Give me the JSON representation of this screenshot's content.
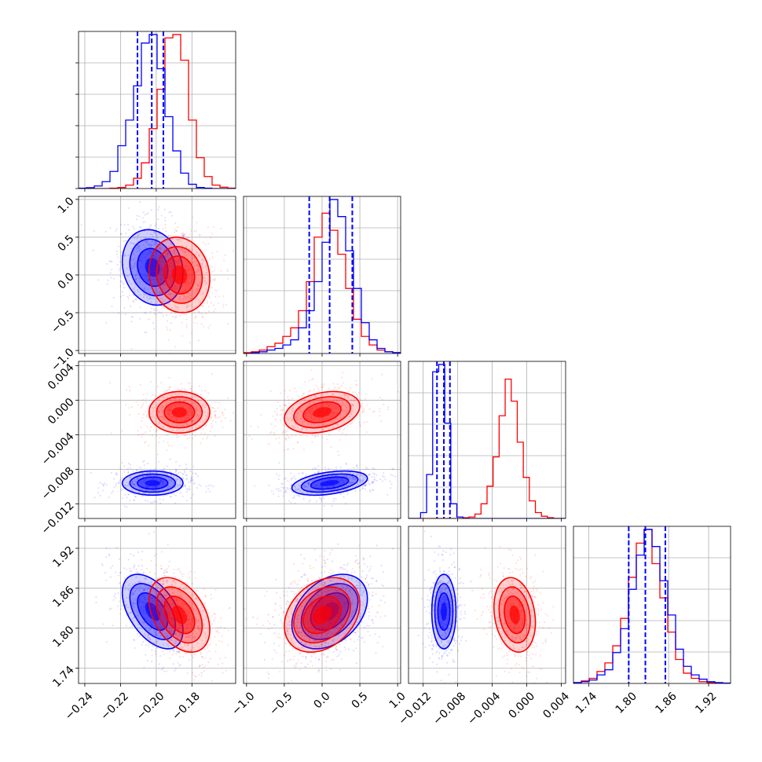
{
  "chart_data": {
    "type": "corner",
    "parameters": [
      {
        "ticks": [
          "−0.24",
          "−0.22",
          "−0.20",
          "−0.18"
        ],
        "tick_values": [
          -0.24,
          -0.22,
          -0.2,
          -0.18
        ],
        "range": [
          -0.2435,
          -0.1555
        ]
      },
      {
        "ticks": [
          "−1.0",
          "−0.5",
          "0.0",
          "0.5",
          "1.0"
        ],
        "tick_values": [
          -1.0,
          -0.5,
          0.0,
          0.5,
          1.0
        ],
        "range": [
          -1.04,
          1.04
        ]
      },
      {
        "ticks": [
          "−0.012",
          "−0.008",
          "−0.004",
          "0.000",
          "0.004"
        ],
        "tick_values": [
          -0.012,
          -0.008,
          -0.004,
          0.0,
          0.004
        ],
        "range": [
          -0.0137,
          0.0045
        ]
      },
      {
        "ticks": [
          "1.74",
          "1.80",
          "1.86",
          "1.92"
        ],
        "tick_values": [
          1.74,
          1.8,
          1.86,
          1.92
        ],
        "range": [
          1.717,
          1.953
        ]
      }
    ],
    "series": [
      {
        "color": "#0000ff",
        "means": [
          -0.202,
          0.1,
          -0.0096,
          1.825
        ],
        "sds": [
          0.0085,
          0.25,
          0.0007,
          0.028
        ],
        "quantiles": [
          [
            -0.2105,
            -0.2025,
            -0.196
          ],
          [
            -0.17,
            0.1,
            0.4
          ],
          [
            -0.0104,
            -0.0096,
            -0.0089
          ],
          [
            1.8,
            1.825,
            1.855
          ]
        ],
        "correlations": {
          "0-1": -0.15,
          "0-2": 0.0,
          "0-3": -0.5,
          "1-2": 0.4,
          "1-3": 0.35,
          "2-3": 0.0
        }
      },
      {
        "color": "#ff0000",
        "means": [
          -0.187,
          0.0,
          -0.0014,
          1.82
        ],
        "sds": [
          0.0085,
          0.25,
          0.0012,
          0.028
        ],
        "quantiles": null,
        "correlations": {
          "0-1": -0.1,
          "0-2": 0.0,
          "0-3": -0.4,
          "1-2": 0.3,
          "1-3": 0.3,
          "2-3": -0.2
        }
      }
    ],
    "histograms": {
      "0": {
        "bins": [
          -0.2435,
          -0.1555
        ],
        "nbins": 20,
        "blue": [
          0.2,
          0.5,
          1.5,
          4,
          10,
          25,
          40,
          60,
          85,
          90,
          70,
          42,
          22,
          9,
          2.5,
          0.6,
          0.2,
          0,
          0,
          0
        ],
        "red": [
          0,
          0,
          0,
          0,
          0.2,
          0.6,
          2,
          6,
          15,
          35,
          58,
          88,
          90,
          75,
          40,
          18,
          7,
          2,
          0.8,
          0.2
        ]
      },
      "1": {
        "nbins": 20,
        "blue": [
          0,
          0.5,
          1,
          2,
          3,
          5,
          8,
          15,
          25,
          42,
          65,
          90,
          80,
          60,
          38,
          18,
          8,
          3,
          1,
          0.5
        ],
        "red": [
          0.5,
          1,
          2,
          4,
          6,
          10,
          15,
          25,
          42,
          68,
          82,
          72,
          58,
          38,
          20,
          10,
          5,
          2,
          1,
          0.5
        ]
      },
      "2": {
        "nbins": 26,
        "blue": [
          0,
          0,
          4,
          30,
          100,
          105,
          65,
          10,
          1,
          0,
          0,
          0,
          0,
          0,
          0,
          0,
          0,
          0,
          0,
          0,
          0,
          0,
          0,
          0,
          0,
          0
        ],
        "red": [
          0,
          0,
          0,
          0,
          0,
          0,
          0,
          0,
          0,
          0.5,
          1,
          3,
          10,
          22,
          42,
          70,
          95,
          80,
          52,
          28,
          12,
          4,
          1.5,
          0.5,
          0,
          0
        ]
      },
      "3": {
        "nbins": 20,
        "blue": [
          0.5,
          1,
          2,
          5,
          8,
          18,
          32,
          55,
          75,
          90,
          80,
          60,
          40,
          20,
          10,
          5,
          2.5,
          1,
          0.5,
          0.2
        ],
        "red": [
          0.5,
          1.5,
          3,
          7,
          12,
          22,
          38,
          62,
          82,
          90,
          70,
          50,
          30,
          14,
          6,
          3,
          1,
          0.5,
          0.2,
          0
        ]
      }
    },
    "grid": true,
    "legend": "none"
  }
}
